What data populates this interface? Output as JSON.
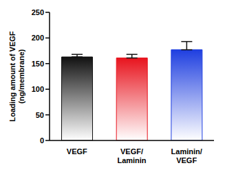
{
  "chart_data": {
    "type": "bar",
    "ylabel": "Loading amount of VEGF (ng/membrane)",
    "categories": [
      "VEGF",
      "VEGF/Laminin",
      "Laminin/VEGF"
    ],
    "values": [
      163,
      161,
      177
    ],
    "errors": [
      5,
      7,
      16
    ],
    "colors": [
      "#111111",
      "#e8141e",
      "#1f3fe0"
    ],
    "ylim": [
      0,
      250
    ],
    "yticks": [
      0,
      50,
      100,
      150,
      200,
      250
    ],
    "grid": false
  }
}
